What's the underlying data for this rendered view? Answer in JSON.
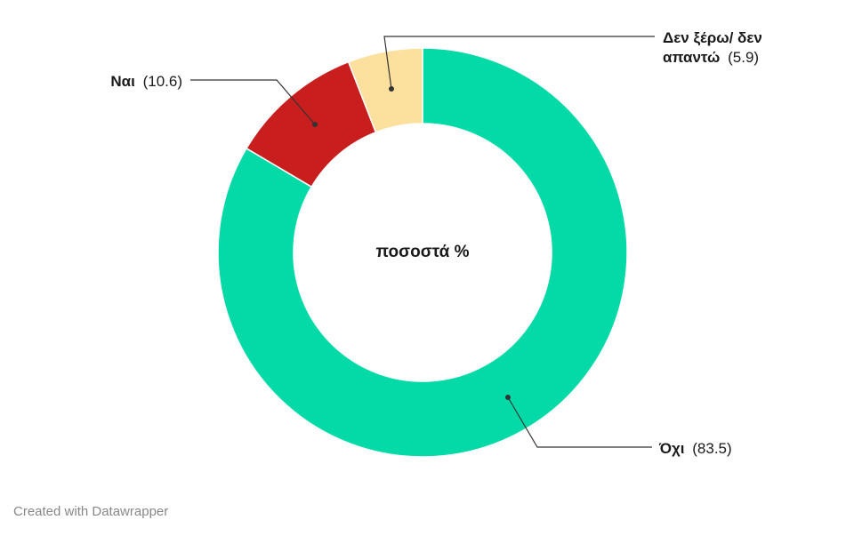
{
  "chart_data": {
    "type": "pie",
    "variant": "donut",
    "center_label": "ποσοστά %",
    "slices": [
      {
        "name": "Όχι",
        "value": 83.5,
        "value_label": "(83.5)",
        "color": "#04DAA7"
      },
      {
        "name": "Ναι",
        "value": 10.6,
        "value_label": "(10.6)",
        "color": "#C81E1E"
      },
      {
        "name": "Δεν ξέρω/ δεν απαντώ",
        "name_lines": [
          "Δεν ξέρω/ δεν",
          "απαντώ"
        ],
        "value": 5.9,
        "value_label": "(5.9)",
        "color": "#FCE19E"
      }
    ]
  },
  "footer": {
    "credit": "Created with Datawrapper"
  }
}
